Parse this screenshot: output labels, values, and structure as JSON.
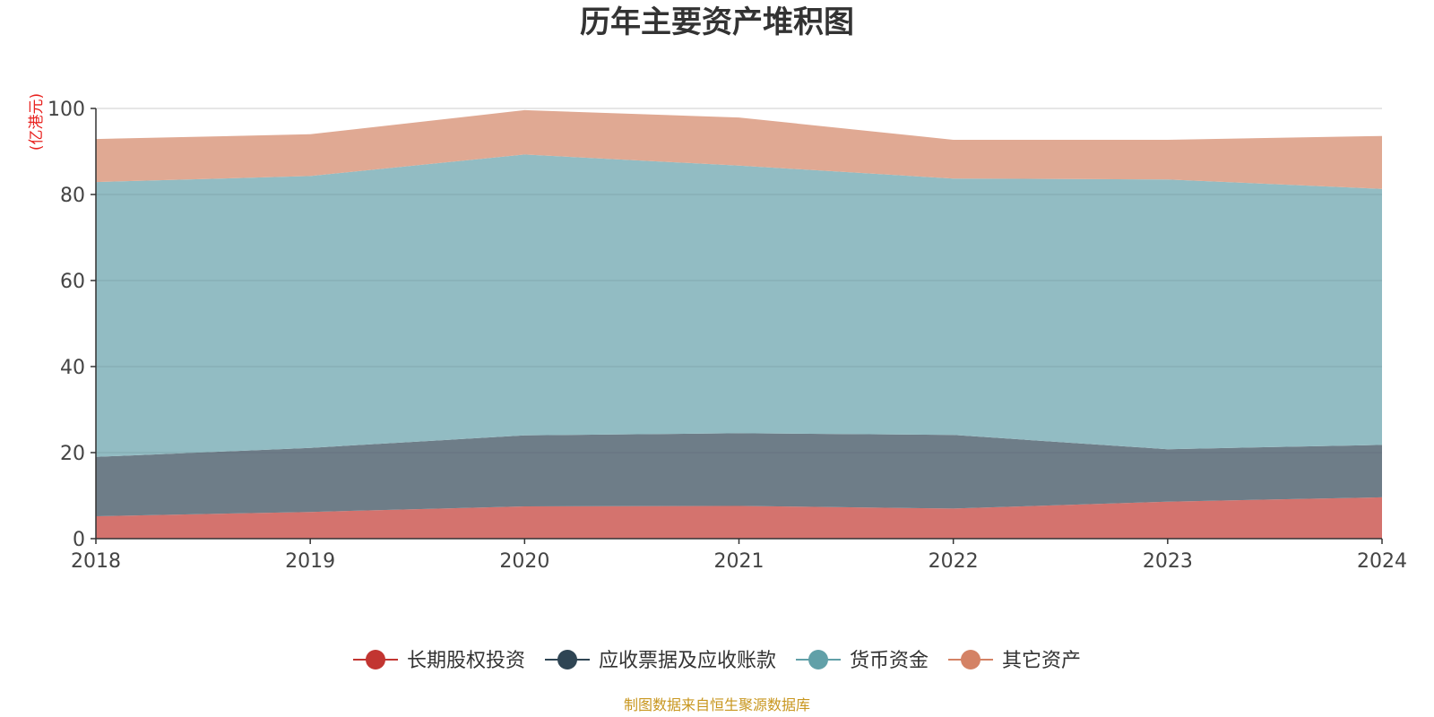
{
  "title": "历年主要资产堆积图",
  "source": "制图数据来自恒生聚源数据库",
  "chart_data": {
    "type": "area",
    "stacked": true,
    "title": "历年主要资产堆积图",
    "unit": "(亿港元)",
    "x": [
      "2018",
      "2019",
      "2020",
      "2021",
      "2022",
      "2023",
      "2024"
    ],
    "y_ticks": [
      "0",
      "20",
      "40",
      "60",
      "80",
      "100"
    ],
    "ylim": [
      0,
      100
    ],
    "grid": true,
    "legend_position": "bottom",
    "series": [
      {
        "name": "长期股权投资",
        "color": "#c23531",
        "fill": "#d4736e",
        "values": [
          5.2,
          6.2,
          7.5,
          7.6,
          7.0,
          8.6,
          9.6
        ]
      },
      {
        "name": "应收票据及应收账款",
        "color": "#2f4554",
        "fill": "#6e7d88",
        "values": [
          13.8,
          14.9,
          16.5,
          16.9,
          17.1,
          12.2,
          12.2
        ]
      },
      {
        "name": "货币资金",
        "color": "#61a0a8",
        "fill": "#92bcc3",
        "values": [
          63.9,
          63.2,
          65.3,
          62.2,
          59.6,
          62.7,
          59.5
        ]
      },
      {
        "name": "其它资产",
        "color": "#d48265",
        "fill": "#e0a993",
        "values": [
          10.0,
          9.7,
          10.3,
          11.2,
          9.0,
          9.2,
          12.3
        ]
      }
    ]
  }
}
